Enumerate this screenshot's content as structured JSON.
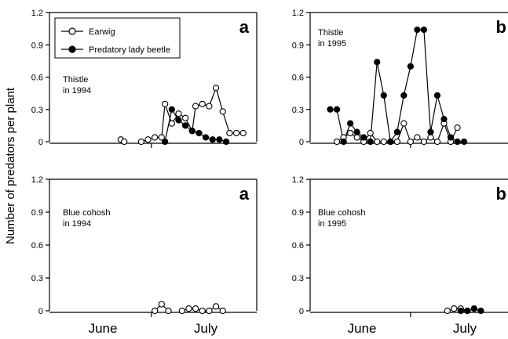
{
  "figure": {
    "y_axis_label": "Number of predators per plant",
    "x_months": [
      "June",
      "July"
    ],
    "legend": {
      "earwig": "Earwig",
      "lady_beetle": "Predatory lady beetle"
    }
  },
  "colors": {
    "earwig_fill": "#ffffff",
    "lady_beetle_fill": "#000000",
    "axis": "#000000"
  },
  "chart_data": [
    {
      "type": "line",
      "panel_letter": "a",
      "note_line1": "Thistle",
      "note_line2": "in 1994",
      "xlim": [
        0,
        61
      ],
      "ylim": [
        0,
        1.2
      ],
      "yticks": [
        "0",
        "0.3",
        "0.6",
        "0.9",
        "1.2"
      ],
      "x_month_boundary": 30,
      "series": [
        {
          "key": "earwig",
          "name": "Earwig",
          "x": [
            21,
            22
          ],
          "y": [
            0.02,
            0.0
          ]
        },
        {
          "key": "earwig",
          "name": "Earwig",
          "x": [
            27,
            29,
            31,
            33,
            34,
            36,
            38,
            40,
            42,
            43,
            45,
            47,
            49,
            51,
            53,
            55,
            57
          ],
          "y": [
            0.0,
            0.02,
            0.04,
            0.04,
            0.35,
            0.17,
            0.26,
            0.22,
            0.1,
            0.33,
            0.35,
            0.33,
            0.5,
            0.28,
            0.08,
            0.08,
            0.08
          ]
        },
        {
          "key": "lady_beetle",
          "name": "Predatory lady beetle",
          "x": [
            34,
            36,
            38,
            40,
            42,
            44,
            46,
            48,
            50,
            52
          ],
          "y": [
            0.0,
            0.3,
            0.2,
            0.15,
            0.1,
            0.08,
            0.04,
            0.02,
            0.02,
            0.0
          ]
        }
      ]
    },
    {
      "type": "line",
      "panel_letter": "b",
      "note_line1": "Thistle",
      "note_line2": "in 1995",
      "xlim": [
        0,
        61
      ],
      "ylim": [
        0,
        1.2
      ],
      "yticks": [
        "0",
        "0.3",
        "0.6",
        "0.9",
        "1.2"
      ],
      "x_month_boundary": 30,
      "series": [
        {
          "key": "earwig",
          "name": "Earwig",
          "x": [
            8,
            10,
            12,
            14,
            16,
            18,
            20,
            22,
            24,
            26,
            28,
            30,
            32,
            34,
            36,
            38,
            40,
            42,
            44
          ],
          "y": [
            0.0,
            0.04,
            0.08,
            0.04,
            0.0,
            0.08,
            0.0,
            0.0,
            0.0,
            0.0,
            0.17,
            0.0,
            0.04,
            0.0,
            0.04,
            0.0,
            0.17,
            0.0,
            0.13
          ]
        },
        {
          "key": "lady_beetle",
          "name": "Predatory lady beetle",
          "x": [
            6,
            8,
            10,
            12,
            14,
            16,
            18,
            20,
            22,
            24,
            26,
            28,
            30,
            32,
            34,
            36,
            38,
            40,
            42,
            44,
            46
          ],
          "y": [
            0.3,
            0.3,
            0.0,
            0.17,
            0.09,
            0.04,
            0.0,
            0.74,
            0.43,
            0.0,
            0.09,
            0.43,
            0.7,
            1.04,
            1.04,
            0.09,
            0.43,
            0.21,
            0.04,
            0.0,
            0.0
          ]
        }
      ]
    },
    {
      "type": "line",
      "panel_letter": "a",
      "note_line1": "Blue cohosh",
      "note_line2": "in 1994",
      "xlim": [
        0,
        61
      ],
      "ylim": [
        0,
        1.2
      ],
      "yticks": [
        "0",
        "0.3",
        "0.6",
        "0.9",
        "1.2"
      ],
      "x_month_boundary": 30,
      "series": [
        {
          "key": "earwig",
          "name": "Earwig",
          "x": [
            31,
            33,
            35
          ],
          "y": [
            0.0,
            0.06,
            0.0
          ]
        },
        {
          "key": "earwig",
          "name": "Earwig",
          "x": [
            39,
            41,
            43,
            45,
            47,
            49,
            51
          ],
          "y": [
            0.0,
            0.02,
            0.02,
            0.0,
            0.0,
            0.04,
            0.0
          ]
        }
      ]
    },
    {
      "type": "line",
      "panel_letter": "b",
      "note_line1": "Blue cohosh",
      "note_line2": "in 1995",
      "xlim": [
        0,
        61
      ],
      "ylim": [
        0,
        1.2
      ],
      "yticks": [
        "0",
        "0.3",
        "0.6",
        "0.9",
        "1.2"
      ],
      "x_month_boundary": 30,
      "series": [
        {
          "key": "earwig",
          "name": "Earwig",
          "x": [
            41,
            43,
            45,
            47
          ],
          "y": [
            0.0,
            0.02,
            0.02,
            0.0
          ]
        },
        {
          "key": "lady_beetle",
          "name": "Predatory lady beetle",
          "x": [
            45,
            47,
            49,
            51
          ],
          "y": [
            0.0,
            0.0,
            0.02,
            0.0
          ]
        }
      ]
    }
  ]
}
